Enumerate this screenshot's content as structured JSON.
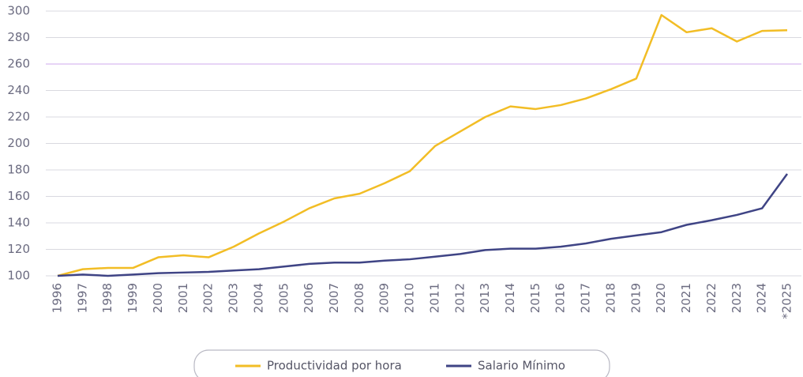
{
  "chart_data": {
    "type": "line",
    "categories": [
      "1996",
      "1997",
      "1998",
      "1999",
      "2000",
      "2001",
      "2002",
      "2003",
      "2004",
      "2005",
      "2006",
      "2007",
      "2008",
      "2009",
      "2010",
      "2011",
      "2012",
      "2013",
      "2014",
      "2015",
      "2016",
      "2017",
      "2018",
      "2019",
      "2020",
      "2021",
      "2022",
      "2023",
      "2024",
      "*2025"
    ],
    "series": [
      {
        "name": "Productividad por hora",
        "color": "#f2bd25",
        "values": [
          100,
          105,
          106,
          106,
          114,
          115.5,
          114,
          122,
          132,
          141,
          151,
          158.5,
          162,
          170,
          179,
          198,
          209,
          220,
          228,
          226,
          229,
          234,
          241,
          249,
          297,
          284,
          287,
          277,
          285,
          285.5
        ]
      },
      {
        "name": "Salario Mínimo",
        "color": "#3f4485",
        "values": [
          100,
          101,
          100,
          101,
          102,
          102.5,
          103,
          104,
          105,
          107,
          109,
          110,
          110,
          111.5,
          112.5,
          114.5,
          116.5,
          119.5,
          120.5,
          120.5,
          122,
          124.5,
          128,
          130.5,
          133,
          138.5,
          142,
          146,
          151,
          177
        ]
      }
    ],
    "ylim": [
      100,
      300
    ],
    "yticks": [
      100,
      120,
      140,
      160,
      180,
      200,
      220,
      240,
      260,
      280,
      300
    ],
    "grid": true,
    "grid_color": "#d9d9e0",
    "highlight_tick": {
      "value": 260,
      "color": "#cfa8ee"
    },
    "legend": "bottom"
  }
}
